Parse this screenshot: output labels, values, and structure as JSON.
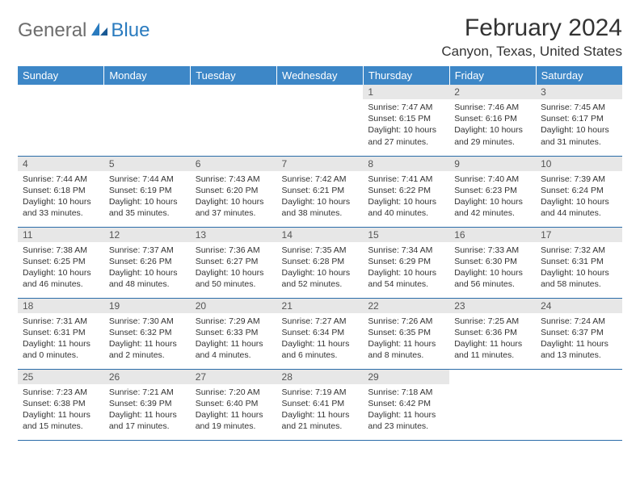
{
  "logo": {
    "text1": "General",
    "text2": "Blue"
  },
  "title": "February 2024",
  "location": "Canyon, Texas, United States",
  "colors": {
    "header_bg": "#3d87c7",
    "header_text": "#ffffff",
    "daynum_bg": "#e7e7e7",
    "border": "#2a6ca8",
    "logo_gray": "#6d6d6d",
    "logo_blue": "#2a7bbf"
  },
  "weekdays": [
    "Sunday",
    "Monday",
    "Tuesday",
    "Wednesday",
    "Thursday",
    "Friday",
    "Saturday"
  ],
  "weeks": [
    [
      null,
      null,
      null,
      null,
      {
        "n": "1",
        "sr": "7:47 AM",
        "ss": "6:15 PM",
        "dl": "10 hours and 27 minutes."
      },
      {
        "n": "2",
        "sr": "7:46 AM",
        "ss": "6:16 PM",
        "dl": "10 hours and 29 minutes."
      },
      {
        "n": "3",
        "sr": "7:45 AM",
        "ss": "6:17 PM",
        "dl": "10 hours and 31 minutes."
      }
    ],
    [
      {
        "n": "4",
        "sr": "7:44 AM",
        "ss": "6:18 PM",
        "dl": "10 hours and 33 minutes."
      },
      {
        "n": "5",
        "sr": "7:44 AM",
        "ss": "6:19 PM",
        "dl": "10 hours and 35 minutes."
      },
      {
        "n": "6",
        "sr": "7:43 AM",
        "ss": "6:20 PM",
        "dl": "10 hours and 37 minutes."
      },
      {
        "n": "7",
        "sr": "7:42 AM",
        "ss": "6:21 PM",
        "dl": "10 hours and 38 minutes."
      },
      {
        "n": "8",
        "sr": "7:41 AM",
        "ss": "6:22 PM",
        "dl": "10 hours and 40 minutes."
      },
      {
        "n": "9",
        "sr": "7:40 AM",
        "ss": "6:23 PM",
        "dl": "10 hours and 42 minutes."
      },
      {
        "n": "10",
        "sr": "7:39 AM",
        "ss": "6:24 PM",
        "dl": "10 hours and 44 minutes."
      }
    ],
    [
      {
        "n": "11",
        "sr": "7:38 AM",
        "ss": "6:25 PM",
        "dl": "10 hours and 46 minutes."
      },
      {
        "n": "12",
        "sr": "7:37 AM",
        "ss": "6:26 PM",
        "dl": "10 hours and 48 minutes."
      },
      {
        "n": "13",
        "sr": "7:36 AM",
        "ss": "6:27 PM",
        "dl": "10 hours and 50 minutes."
      },
      {
        "n": "14",
        "sr": "7:35 AM",
        "ss": "6:28 PM",
        "dl": "10 hours and 52 minutes."
      },
      {
        "n": "15",
        "sr": "7:34 AM",
        "ss": "6:29 PM",
        "dl": "10 hours and 54 minutes."
      },
      {
        "n": "16",
        "sr": "7:33 AM",
        "ss": "6:30 PM",
        "dl": "10 hours and 56 minutes."
      },
      {
        "n": "17",
        "sr": "7:32 AM",
        "ss": "6:31 PM",
        "dl": "10 hours and 58 minutes."
      }
    ],
    [
      {
        "n": "18",
        "sr": "7:31 AM",
        "ss": "6:31 PM",
        "dl": "11 hours and 0 minutes."
      },
      {
        "n": "19",
        "sr": "7:30 AM",
        "ss": "6:32 PM",
        "dl": "11 hours and 2 minutes."
      },
      {
        "n": "20",
        "sr": "7:29 AM",
        "ss": "6:33 PM",
        "dl": "11 hours and 4 minutes."
      },
      {
        "n": "21",
        "sr": "7:27 AM",
        "ss": "6:34 PM",
        "dl": "11 hours and 6 minutes."
      },
      {
        "n": "22",
        "sr": "7:26 AM",
        "ss": "6:35 PM",
        "dl": "11 hours and 8 minutes."
      },
      {
        "n": "23",
        "sr": "7:25 AM",
        "ss": "6:36 PM",
        "dl": "11 hours and 11 minutes."
      },
      {
        "n": "24",
        "sr": "7:24 AM",
        "ss": "6:37 PM",
        "dl": "11 hours and 13 minutes."
      }
    ],
    [
      {
        "n": "25",
        "sr": "7:23 AM",
        "ss": "6:38 PM",
        "dl": "11 hours and 15 minutes."
      },
      {
        "n": "26",
        "sr": "7:21 AM",
        "ss": "6:39 PM",
        "dl": "11 hours and 17 minutes."
      },
      {
        "n": "27",
        "sr": "7:20 AM",
        "ss": "6:40 PM",
        "dl": "11 hours and 19 minutes."
      },
      {
        "n": "28",
        "sr": "7:19 AM",
        "ss": "6:41 PM",
        "dl": "11 hours and 21 minutes."
      },
      {
        "n": "29",
        "sr": "7:18 AM",
        "ss": "6:42 PM",
        "dl": "11 hours and 23 minutes."
      },
      null,
      null
    ]
  ],
  "labels": {
    "sunrise": "Sunrise:",
    "sunset": "Sunset:",
    "daylight": "Daylight:"
  }
}
